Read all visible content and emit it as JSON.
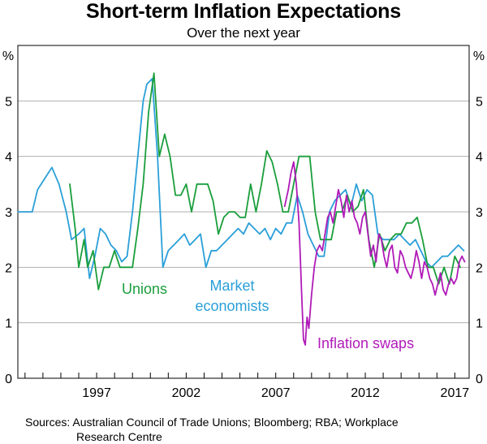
{
  "chart_data": {
    "type": "line",
    "title": "Short-term Inflation Expectations",
    "subtitle": "Over the next year",
    "ylabel_left": "%",
    "ylabel_right": "%",
    "ylim": [
      0,
      6
    ],
    "yticks": [
      "0",
      "1",
      "2",
      "3",
      "4",
      "5"
    ],
    "xlim": [
      1992.6,
      2017.8
    ],
    "xticks": [
      "1997",
      "2002",
      "2007",
      "2012",
      "2017"
    ],
    "series": [
      {
        "name": "Unions",
        "label": "Unions",
        "color": "#1a9e3c",
        "points": [
          [
            1995.5,
            3.5
          ],
          [
            1995.8,
            2.7
          ],
          [
            1996.0,
            2.0
          ],
          [
            1996.3,
            2.5
          ],
          [
            1996.5,
            2.0
          ],
          [
            1996.8,
            2.3
          ],
          [
            1997.1,
            1.6
          ],
          [
            1997.4,
            2.0
          ],
          [
            1997.7,
            2.0
          ],
          [
            1998.0,
            2.3
          ],
          [
            1998.3,
            2.0
          ],
          [
            1998.6,
            2.0
          ],
          [
            1999.0,
            2.0
          ],
          [
            1999.3,
            2.7
          ],
          [
            1999.6,
            3.5
          ],
          [
            1999.9,
            4.8
          ],
          [
            2000.2,
            5.5
          ],
          [
            2000.5,
            4.0
          ],
          [
            2000.8,
            4.4
          ],
          [
            2001.1,
            4.0
          ],
          [
            2001.4,
            3.3
          ],
          [
            2001.7,
            3.3
          ],
          [
            2002.0,
            3.5
          ],
          [
            2002.3,
            3.0
          ],
          [
            2002.6,
            3.5
          ],
          [
            2002.9,
            3.5
          ],
          [
            2003.2,
            3.5
          ],
          [
            2003.5,
            3.2
          ],
          [
            2003.8,
            2.6
          ],
          [
            2004.1,
            2.9
          ],
          [
            2004.4,
            3.0
          ],
          [
            2004.7,
            3.0
          ],
          [
            2005.0,
            2.9
          ],
          [
            2005.3,
            2.9
          ],
          [
            2005.6,
            3.5
          ],
          [
            2005.9,
            3.0
          ],
          [
            2006.2,
            3.5
          ],
          [
            2006.5,
            4.1
          ],
          [
            2006.8,
            3.9
          ],
          [
            2007.1,
            3.5
          ],
          [
            2007.4,
            3.0
          ],
          [
            2007.7,
            3.0
          ],
          [
            2008.0,
            3.5
          ],
          [
            2008.3,
            4.0
          ],
          [
            2008.6,
            4.0
          ],
          [
            2008.9,
            4.0
          ],
          [
            2009.2,
            3.0
          ],
          [
            2009.5,
            2.5
          ],
          [
            2009.8,
            2.5
          ],
          [
            2010.1,
            2.5
          ],
          [
            2010.4,
            3.0
          ],
          [
            2010.7,
            3.0
          ],
          [
            2011.0,
            3.3
          ],
          [
            2011.3,
            3.0
          ],
          [
            2011.6,
            3.1
          ],
          [
            2011.9,
            3.4
          ],
          [
            2012.2,
            2.5
          ],
          [
            2012.5,
            2.0
          ],
          [
            2012.8,
            2.6
          ],
          [
            2013.1,
            2.3
          ],
          [
            2013.4,
            2.5
          ],
          [
            2013.7,
            2.6
          ],
          [
            2014.0,
            2.6
          ],
          [
            2014.3,
            2.8
          ],
          [
            2014.6,
            2.8
          ],
          [
            2014.9,
            2.9
          ],
          [
            2015.2,
            2.5
          ],
          [
            2015.5,
            2.0
          ],
          [
            2015.8,
            2.0
          ],
          [
            2016.1,
            1.7
          ],
          [
            2016.4,
            2.0
          ],
          [
            2016.7,
            1.7
          ],
          [
            2017.0,
            2.2
          ],
          [
            2017.3,
            2.0
          ]
        ]
      },
      {
        "name": "Market economists",
        "label_line1": "Market",
        "label_line2": "economists",
        "color": "#2a9fd8",
        "points": [
          [
            1992.6,
            3.0
          ],
          [
            1993.0,
            3.0
          ],
          [
            1993.4,
            3.0
          ],
          [
            1993.7,
            3.4
          ],
          [
            1994.1,
            3.6
          ],
          [
            1994.5,
            3.8
          ],
          [
            1994.9,
            3.5
          ],
          [
            1995.3,
            3.0
          ],
          [
            1995.6,
            2.5
          ],
          [
            1996.0,
            2.6
          ],
          [
            1996.3,
            2.7
          ],
          [
            1996.6,
            1.8
          ],
          [
            1996.9,
            2.2
          ],
          [
            1997.2,
            2.7
          ],
          [
            1997.5,
            2.6
          ],
          [
            1997.8,
            2.4
          ],
          [
            1998.1,
            2.3
          ],
          [
            1998.4,
            2.1
          ],
          [
            1998.7,
            2.2
          ],
          [
            1999.0,
            3.0
          ],
          [
            1999.3,
            4.0
          ],
          [
            1999.6,
            5.0
          ],
          [
            1999.8,
            5.3
          ],
          [
            2000.1,
            5.4
          ],
          [
            2000.4,
            4.0
          ],
          [
            2000.7,
            2.0
          ],
          [
            2001.0,
            2.3
          ],
          [
            2001.3,
            2.4
          ],
          [
            2001.6,
            2.5
          ],
          [
            2001.9,
            2.6
          ],
          [
            2002.2,
            2.4
          ],
          [
            2002.5,
            2.5
          ],
          [
            2002.8,
            2.6
          ],
          [
            2003.1,
            2.0
          ],
          [
            2003.4,
            2.3
          ],
          [
            2003.7,
            2.3
          ],
          [
            2004.0,
            2.4
          ],
          [
            2004.3,
            2.5
          ],
          [
            2004.6,
            2.6
          ],
          [
            2004.9,
            2.7
          ],
          [
            2005.2,
            2.6
          ],
          [
            2005.5,
            2.8
          ],
          [
            2005.8,
            2.7
          ],
          [
            2006.1,
            2.6
          ],
          [
            2006.4,
            2.7
          ],
          [
            2006.7,
            2.5
          ],
          [
            2007.0,
            2.7
          ],
          [
            2007.3,
            2.6
          ],
          [
            2007.6,
            2.8
          ],
          [
            2007.9,
            2.8
          ],
          [
            2008.2,
            3.3
          ],
          [
            2008.5,
            3.0
          ],
          [
            2008.8,
            2.6
          ],
          [
            2009.1,
            2.4
          ],
          [
            2009.4,
            2.2
          ],
          [
            2009.7,
            2.2
          ],
          [
            2010.0,
            3.0
          ],
          [
            2010.3,
            3.2
          ],
          [
            2010.6,
            3.3
          ],
          [
            2010.9,
            3.4
          ],
          [
            2011.2,
            3.1
          ],
          [
            2011.5,
            3.5
          ],
          [
            2011.8,
            3.2
          ],
          [
            2012.1,
            3.4
          ],
          [
            2012.4,
            3.3
          ],
          [
            2012.7,
            2.6
          ],
          [
            2013.0,
            2.5
          ],
          [
            2013.3,
            2.5
          ],
          [
            2013.6,
            2.5
          ],
          [
            2013.9,
            2.6
          ],
          [
            2014.2,
            2.5
          ],
          [
            2014.5,
            2.4
          ],
          [
            2014.8,
            2.5
          ],
          [
            2015.1,
            2.3
          ],
          [
            2015.4,
            2.1
          ],
          [
            2015.7,
            2.0
          ],
          [
            2016.0,
            2.1
          ],
          [
            2016.3,
            2.2
          ],
          [
            2016.6,
            2.2
          ],
          [
            2016.9,
            2.3
          ],
          [
            2017.2,
            2.4
          ],
          [
            2017.5,
            2.3
          ]
        ]
      },
      {
        "name": "Inflation swaps",
        "label": "Inflation swaps",
        "color": "#b01ab8",
        "points": [
          [
            2007.5,
            3.1
          ],
          [
            2007.7,
            3.4
          ],
          [
            2007.85,
            3.7
          ],
          [
            2008.0,
            3.9
          ],
          [
            2008.15,
            3.5
          ],
          [
            2008.3,
            2.8
          ],
          [
            2008.45,
            1.5
          ],
          [
            2008.55,
            0.7
          ],
          [
            2008.65,
            0.6
          ],
          [
            2008.75,
            1.1
          ],
          [
            2008.85,
            0.9
          ],
          [
            2009.0,
            1.5
          ],
          [
            2009.15,
            2.0
          ],
          [
            2009.3,
            2.3
          ],
          [
            2009.45,
            2.4
          ],
          [
            2009.6,
            2.3
          ],
          [
            2009.75,
            2.6
          ],
          [
            2009.9,
            2.9
          ],
          [
            2010.05,
            3.0
          ],
          [
            2010.2,
            2.8
          ],
          [
            2010.35,
            3.1
          ],
          [
            2010.5,
            3.4
          ],
          [
            2010.65,
            3.2
          ],
          [
            2010.8,
            2.9
          ],
          [
            2010.95,
            3.3
          ],
          [
            2011.1,
            3.0
          ],
          [
            2011.25,
            3.2
          ],
          [
            2011.4,
            2.9
          ],
          [
            2011.55,
            2.8
          ],
          [
            2011.7,
            2.6
          ],
          [
            2011.85,
            2.9
          ],
          [
            2012.0,
            3.0
          ],
          [
            2012.15,
            2.6
          ],
          [
            2012.3,
            2.2
          ],
          [
            2012.45,
            2.4
          ],
          [
            2012.6,
            2.1
          ],
          [
            2012.75,
            2.6
          ],
          [
            2012.9,
            2.5
          ],
          [
            2013.05,
            2.2
          ],
          [
            2013.2,
            2.0
          ],
          [
            2013.35,
            2.3
          ],
          [
            2013.5,
            2.4
          ],
          [
            2013.65,
            2.0
          ],
          [
            2013.8,
            1.9
          ],
          [
            2013.95,
            2.3
          ],
          [
            2014.1,
            2.2
          ],
          [
            2014.25,
            2.0
          ],
          [
            2014.4,
            1.9
          ],
          [
            2014.55,
            1.8
          ],
          [
            2014.7,
            2.0
          ],
          [
            2014.85,
            2.3
          ],
          [
            2015.0,
            2.1
          ],
          [
            2015.15,
            1.8
          ],
          [
            2015.3,
            2.1
          ],
          [
            2015.45,
            2.0
          ],
          [
            2015.6,
            1.8
          ],
          [
            2015.75,
            1.7
          ],
          [
            2015.9,
            1.5
          ],
          [
            2016.05,
            1.7
          ],
          [
            2016.2,
            1.9
          ],
          [
            2016.35,
            1.6
          ],
          [
            2016.5,
            1.5
          ],
          [
            2016.65,
            1.7
          ],
          [
            2016.8,
            1.8
          ],
          [
            2016.95,
            1.7
          ],
          [
            2017.1,
            1.8
          ],
          [
            2017.25,
            2.1
          ],
          [
            2017.4,
            2.2
          ],
          [
            2017.55,
            2.1
          ]
        ]
      }
    ],
    "annotations": [
      {
        "text": "Unions",
        "series": 0
      },
      {
        "text": "Market economists",
        "series": 1
      },
      {
        "text": "Inflation swaps",
        "series": 2
      }
    ],
    "grid": "horizontal"
  },
  "source_prefix": "Sources:",
  "source_line1": "Australian Council of Trade Unions; Bloomberg; RBA; Workplace",
  "source_line2": "Research Centre"
}
